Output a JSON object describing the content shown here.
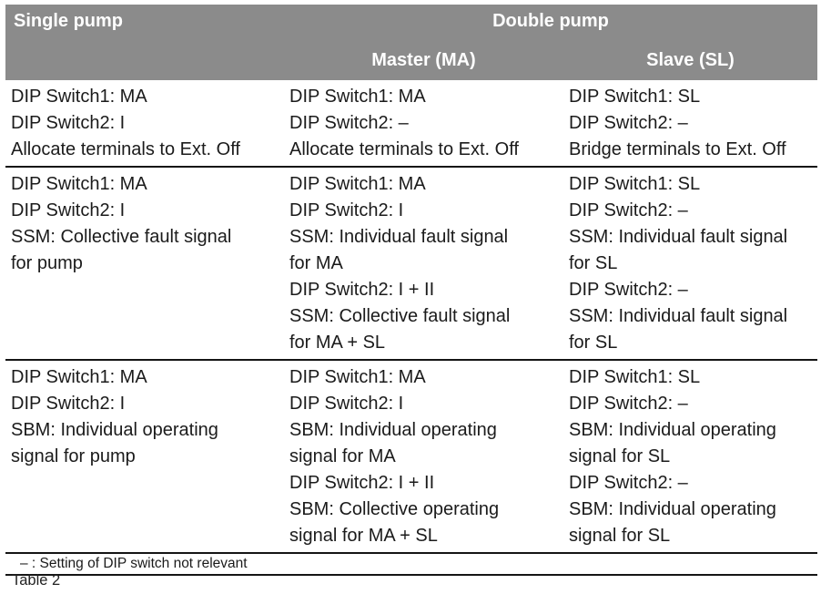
{
  "table": {
    "header": {
      "single_pump": "Single pump",
      "double_pump": "Double pump",
      "master": "Master (MA)",
      "slave": "Slave (SL)"
    },
    "rows": [
      {
        "cols": [
          [
            "DIP Switch1: MA",
            "DIP Switch2: I",
            "Allocate terminals to Ext. Off"
          ],
          [
            "DIP Switch1: MA",
            "DIP Switch2: –",
            "Allocate terminals to Ext. Off"
          ],
          [
            "DIP Switch1: SL",
            "DIP Switch2: –",
            "Bridge terminals to Ext. Off"
          ]
        ]
      },
      {
        "cols": [
          [
            "DIP Switch1: MA",
            "DIP Switch2: I",
            "SSM: Collective fault signal",
            "for pump"
          ],
          [
            "DIP Switch1: MA",
            "DIP Switch2: I",
            "SSM: Individual fault signal",
            "for MA",
            "DIP Switch2: I + II",
            "SSM: Collective fault signal",
            "for MA + SL"
          ],
          [
            "DIP Switch1: SL",
            "DIP Switch2: –",
            "SSM: Individual fault signal",
            "for SL",
            "DIP Switch2: –",
            "SSM: Individual fault signal",
            "for SL"
          ]
        ]
      },
      {
        "cols": [
          [
            "DIP Switch1: MA",
            "DIP Switch2: I",
            "SBM: Individual operating",
            "signal for pump"
          ],
          [
            "DIP Switch1: MA",
            "DIP Switch2: I",
            "SBM: Individual operating",
            "signal for MA",
            "DIP Switch2: I + II",
            "SBM: Collective operating",
            "signal for MA + SL"
          ],
          [
            "DIP Switch1: SL",
            "DIP Switch2: –",
            "SBM: Individual operating",
            "signal for SL",
            "DIP Switch2: –",
            "SBM: Individual operating",
            "signal for SL"
          ]
        ]
      }
    ],
    "footnote": "– : Setting of DIP switch not relevant",
    "caption": "Table 2"
  },
  "colors": {
    "header_bg": "#8b8b8b",
    "header_text": "#ffffff",
    "body_text": "#1b1b1b",
    "rule": "#151515"
  }
}
